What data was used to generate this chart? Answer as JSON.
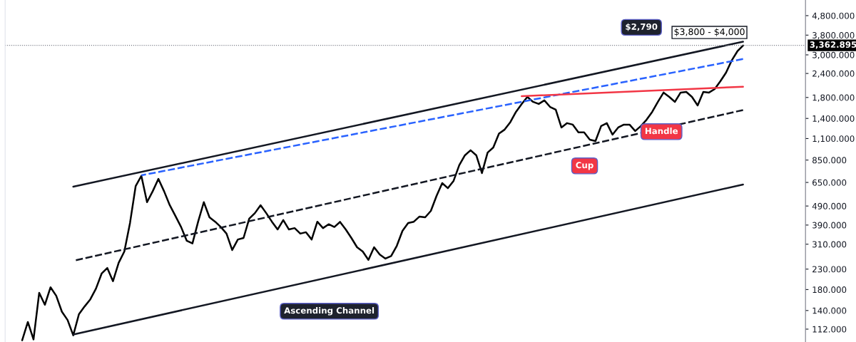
{
  "chart_data": {
    "type": "line",
    "log": "y",
    "grid": false,
    "legend": false,
    "tick_labels": "y",
    "categories": [
      null,
      null,
      null,
      null,
      null,
      null,
      null,
      null,
      null,
      null,
      null,
      null,
      null,
      null,
      null,
      null,
      null,
      null,
      null,
      null,
      null,
      null,
      null,
      null,
      null,
      null,
      null,
      null,
      null,
      null,
      null,
      null,
      null,
      null,
      null,
      null,
      null,
      null,
      null,
      null,
      null,
      null,
      null,
      null,
      null,
      null,
      null,
      null,
      null,
      null,
      null,
      null,
      null,
      null,
      null,
      null,
      null,
      null,
      null,
      null,
      null,
      null,
      null,
      null,
      null,
      null,
      null,
      null,
      null,
      null,
      null,
      null,
      null,
      null,
      null,
      null,
      null,
      null,
      null,
      null,
      null,
      null,
      null,
      null,
      null,
      null,
      null,
      null,
      null,
      null,
      null,
      null,
      null,
      null,
      null,
      null,
      null,
      null,
      null,
      null,
      null,
      null,
      null,
      null,
      null,
      null,
      null,
      null,
      null,
      null,
      null,
      null,
      null,
      null,
      null,
      null,
      null,
      null,
      null,
      null,
      null,
      null,
      null,
      null,
      null,
      null,
      null,
      null
    ],
    "series": [
      {
        "color": "#000000",
        "line_style": "solid",
        "values": [
          98,
          122,
          99,
          173,
          150,
          185,
          167,
          138,
          125,
          104,
          134,
          147,
          160,
          182,
          218,
          233,
          199,
          248,
          284,
          400,
          623,
          703,
          513,
          585,
          678,
          585,
          495,
          435,
          381,
          323,
          313,
          406,
          513,
          428,
          406,
          381,
          352,
          289,
          328,
          334,
          421,
          450,
          495,
          450,
          406,
          370,
          414,
          370,
          376,
          352,
          358,
          328,
          406,
          376,
          394,
          381,
          405,
          370,
          334,
          299,
          284,
          257,
          299,
          274,
          261,
          269,
          304,
          364,
          400,
          406,
          432,
          428,
          462,
          553,
          645,
          607,
          662,
          799,
          900,
          956,
          900,
          727,
          930,
          988,
          1168,
          1225,
          1339,
          1516,
          1665,
          1812,
          1708,
          1665,
          1738,
          1608,
          1555,
          1256,
          1323,
          1300,
          1184,
          1184,
          1086,
          1067,
          1278,
          1323,
          1153,
          1256,
          1300,
          1300,
          1204,
          1278,
          1378,
          1516,
          1708,
          1909,
          1812,
          1708,
          1909,
          1924,
          1812,
          1636,
          1924,
          1909,
          1991,
          2187,
          2424,
          2804,
          3131,
          3356
        ]
      },
      {
        "color": "#131722",
        "line_style": "solid",
        "values": [
          null,
          null,
          null,
          null,
          null,
          null,
          null,
          null,
          null,
          618,
          null,
          null,
          null,
          null,
          null,
          null,
          null,
          null,
          null,
          null,
          null,
          null,
          null,
          null,
          null,
          null,
          null,
          null,
          null,
          null,
          null,
          null,
          null,
          null,
          null,
          null,
          null,
          null,
          null,
          null,
          null,
          null,
          null,
          null,
          null,
          null,
          null,
          null,
          null,
          null,
          null,
          null,
          null,
          null,
          null,
          null,
          null,
          null,
          null,
          null,
          null,
          null,
          null,
          null,
          null,
          null,
          null,
          null,
          null,
          null,
          null,
          null,
          null,
          null,
          null,
          null,
          null,
          null,
          null,
          null,
          null,
          null,
          null,
          null,
          null,
          null,
          null,
          null,
          null,
          null,
          null,
          null,
          null,
          null,
          null,
          null,
          null,
          null,
          null,
          null,
          null,
          null,
          null,
          null,
          null,
          null,
          null,
          null,
          null,
          null,
          null,
          null,
          null,
          null,
          null,
          null,
          null,
          null,
          null,
          null,
          null,
          null,
          null,
          null,
          null,
          null,
          null,
          3513
        ]
      },
      {
        "color": "#131722",
        "line_style": "solid",
        "values": [
          null,
          null,
          null,
          null,
          null,
          null,
          null,
          null,
          null,
          105,
          null,
          null,
          null,
          null,
          null,
          null,
          null,
          null,
          null,
          null,
          null,
          null,
          null,
          null,
          null,
          null,
          null,
          null,
          null,
          null,
          null,
          null,
          null,
          null,
          null,
          null,
          null,
          null,
          null,
          null,
          null,
          null,
          null,
          null,
          null,
          null,
          null,
          null,
          null,
          null,
          null,
          null,
          null,
          null,
          null,
          null,
          null,
          null,
          null,
          null,
          null,
          null,
          null,
          null,
          null,
          null,
          null,
          null,
          null,
          null,
          null,
          null,
          null,
          null,
          null,
          null,
          null,
          null,
          null,
          null,
          null,
          null,
          null,
          null,
          null,
          null,
          null,
          null,
          null,
          null,
          null,
          null,
          null,
          null,
          null,
          null,
          null,
          null,
          null,
          null,
          null,
          null,
          null,
          null,
          null,
          null,
          null,
          null,
          null,
          null,
          null,
          null,
          null,
          null,
          null,
          null,
          null,
          null,
          null,
          null,
          null,
          null,
          null,
          null,
          null,
          null,
          null,
          634
        ]
      },
      {
        "color": "#131722",
        "line_style": "dashed",
        "values": [
          null,
          null,
          null,
          null,
          null,
          null,
          null,
          null,
          null,
          254,
          null,
          null,
          null,
          null,
          null,
          null,
          null,
          null,
          null,
          null,
          null,
          null,
          null,
          null,
          null,
          null,
          null,
          null,
          null,
          null,
          null,
          null,
          null,
          null,
          null,
          null,
          null,
          null,
          null,
          null,
          null,
          null,
          null,
          null,
          null,
          null,
          null,
          null,
          null,
          null,
          null,
          null,
          null,
          null,
          null,
          null,
          null,
          null,
          null,
          null,
          null,
          null,
          null,
          null,
          null,
          null,
          null,
          null,
          null,
          null,
          null,
          null,
          null,
          null,
          null,
          null,
          null,
          null,
          null,
          null,
          null,
          null,
          null,
          null,
          null,
          null,
          null,
          null,
          null,
          null,
          null,
          null,
          null,
          null,
          null,
          null,
          null,
          null,
          null,
          null,
          null,
          null,
          null,
          null,
          null,
          null,
          null,
          null,
          null,
          null,
          null,
          null,
          null,
          null,
          null,
          null,
          null,
          null,
          null,
          null,
          null,
          null,
          null,
          null,
          null,
          null,
          null,
          1548
        ]
      },
      {
        "color": "#2962ff",
        "line_style": "dashed",
        "values": [
          null,
          null,
          null,
          null,
          null,
          null,
          null,
          null,
          null,
          null,
          null,
          null,
          null,
          null,
          null,
          null,
          null,
          null,
          null,
          null,
          null,
          708,
          null,
          null,
          null,
          null,
          null,
          null,
          null,
          null,
          null,
          null,
          null,
          null,
          null,
          null,
          null,
          null,
          null,
          null,
          null,
          null,
          null,
          null,
          null,
          null,
          null,
          null,
          null,
          null,
          null,
          null,
          null,
          null,
          null,
          null,
          null,
          null,
          null,
          null,
          null,
          null,
          null,
          null,
          null,
          null,
          null,
          null,
          null,
          null,
          null,
          null,
          null,
          null,
          null,
          null,
          null,
          null,
          null,
          null,
          null,
          null,
          null,
          null,
          null,
          null,
          null,
          null,
          null,
          null,
          null,
          null,
          null,
          null,
          null,
          null,
          null,
          null,
          null,
          null,
          null,
          null,
          null,
          null,
          null,
          null,
          null,
          null,
          null,
          null,
          null,
          null,
          null,
          null,
          null,
          null,
          null,
          null,
          null,
          null,
          null,
          null,
          null,
          null,
          null,
          null,
          null,
          2854
        ]
      },
      {
        "color": "#f23645",
        "line_style": "solid",
        "values": [
          null,
          null,
          null,
          null,
          null,
          null,
          null,
          null,
          null,
          null,
          null,
          null,
          null,
          null,
          null,
          null,
          null,
          null,
          null,
          null,
          null,
          null,
          null,
          null,
          null,
          null,
          null,
          null,
          null,
          null,
          null,
          null,
          null,
          null,
          null,
          null,
          null,
          null,
          null,
          null,
          null,
          null,
          null,
          null,
          null,
          null,
          null,
          null,
          null,
          null,
          null,
          null,
          null,
          null,
          null,
          null,
          null,
          null,
          null,
          null,
          null,
          null,
          null,
          null,
          null,
          null,
          null,
          null,
          null,
          null,
          null,
          null,
          null,
          null,
          null,
          null,
          null,
          null,
          null,
          null,
          null,
          null,
          null,
          null,
          null,
          null,
          null,
          null,
          1828,
          null,
          null,
          null,
          null,
          null,
          null,
          null,
          null,
          null,
          null,
          null,
          null,
          null,
          null,
          null,
          null,
          null,
          null,
          null,
          null,
          null,
          null,
          null,
          null,
          null,
          null,
          null,
          null,
          null,
          null,
          null,
          null,
          null,
          null,
          null,
          null,
          null,
          null,
          2047
        ]
      }
    ],
    "ylim": [
      96,
      5790
    ],
    "yticks": [
      {
        "value": 112,
        "label": "112.000"
      },
      {
        "value": 140,
        "label": "140.000"
      },
      {
        "value": 180,
        "label": "180.000"
      },
      {
        "value": 230,
        "label": "230.000"
      },
      {
        "value": 310,
        "label": "310.000"
      },
      {
        "value": 390,
        "label": "390.000"
      },
      {
        "value": 490,
        "label": "490.000"
      },
      {
        "value": 650,
        "label": "650.000"
      },
      {
        "value": 850,
        "label": "850.000"
      },
      {
        "value": 1100,
        "label": "1,100.000"
      },
      {
        "value": 1400,
        "label": "1,400.000"
      },
      {
        "value": 1800,
        "label": "1,800.000"
      },
      {
        "value": 2400,
        "label": "2,400.000"
      },
      {
        "value": 3000,
        "label": "3,000.000"
      },
      {
        "value": 3800,
        "label": "3,800.000"
      },
      {
        "value": 4800,
        "label": "4,800.000"
      }
    ],
    "ref_lines": [
      {
        "axis": "y",
        "value": 3362.895,
        "label": "3,362.895",
        "color": "#787b86",
        "line_style": "dotted"
      }
    ],
    "annotations": [
      "Ascending Channel",
      "Cup",
      "Handle",
      "$2,790",
      "$3,800 - $4,000"
    ]
  }
}
